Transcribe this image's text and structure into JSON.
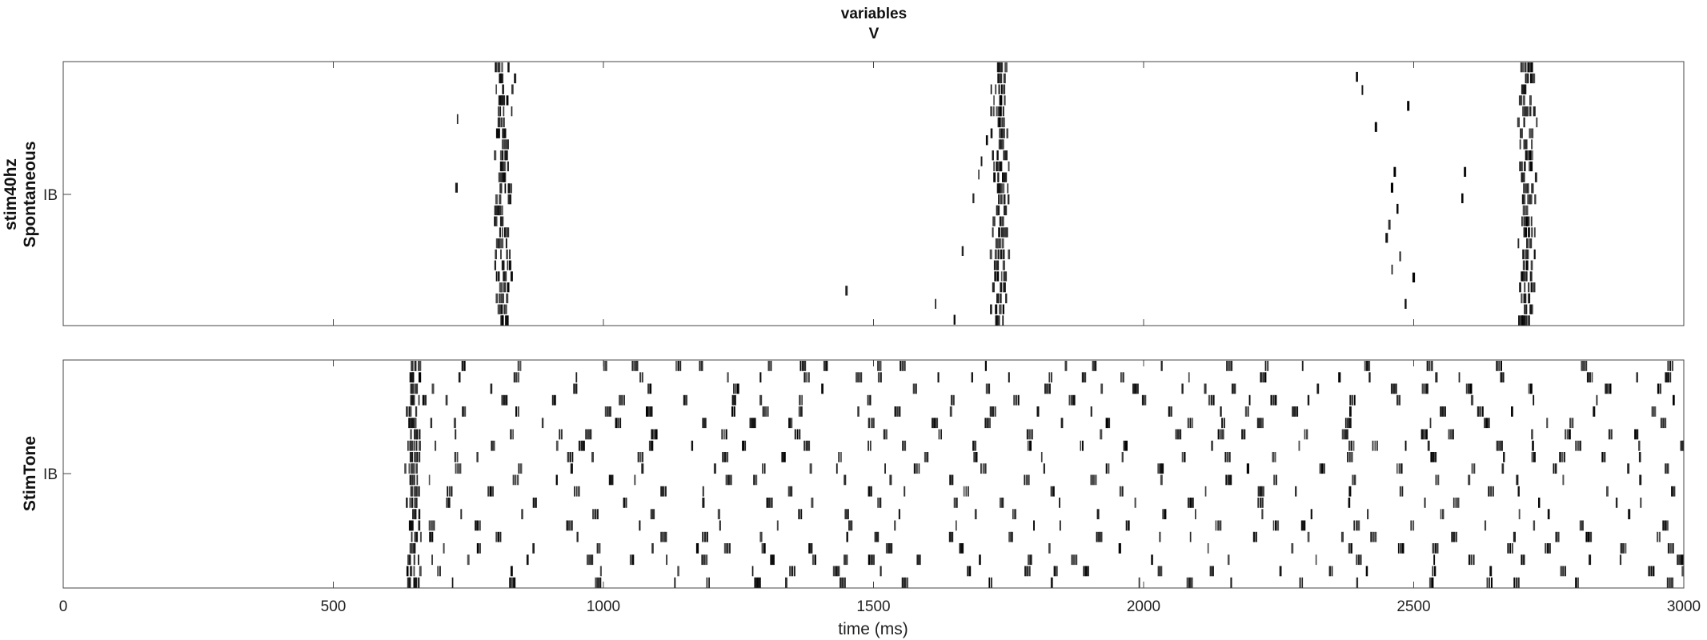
{
  "title": {
    "line1": "variables",
    "line2": "V"
  },
  "chart_data": [
    {
      "type": "raster",
      "ylabel_lines": [
        "stim40hz",
        "Spontaneous"
      ],
      "ytick_label": "IB",
      "xlim": [
        0,
        3000
      ],
      "bursts": [
        {
          "center": 815,
          "spread": 30
        },
        {
          "center": 1735,
          "spread": 30
        },
        {
          "center": 2710,
          "spread": 32
        }
      ],
      "sparse_spikes": [
        [
          730,
          0.22
        ],
        [
          728,
          0.48
        ],
        [
          1450,
          0.87
        ],
        [
          1615,
          0.92
        ],
        [
          1650,
          0.98
        ],
        [
          1665,
          0.72
        ],
        [
          1685,
          0.52
        ],
        [
          1695,
          0.43
        ],
        [
          1700,
          0.38
        ],
        [
          1710,
          0.3
        ],
        [
          2395,
          0.06
        ],
        [
          2405,
          0.11
        ],
        [
          2430,
          0.25
        ],
        [
          2465,
          0.42
        ],
        [
          2460,
          0.48
        ],
        [
          2470,
          0.56
        ],
        [
          2455,
          0.62
        ],
        [
          2450,
          0.67
        ],
        [
          2475,
          0.74
        ],
        [
          2460,
          0.79
        ],
        [
          2500,
          0.82
        ],
        [
          2485,
          0.92
        ],
        [
          2595,
          0.42
        ],
        [
          2590,
          0.52
        ],
        [
          2490,
          0.17
        ]
      ]
    },
    {
      "type": "raster",
      "ylabel_lines": [
        "StimTone"
      ],
      "ytick_label": "IB",
      "xlim": [
        0,
        3000
      ],
      "xticks": [
        0,
        500,
        1000,
        1500,
        2000,
        2500,
        3000
      ],
      "xlabel": "time (ms)",
      "bursts": [
        {
          "center": 648,
          "spread": 28
        }
      ],
      "sparse_onset": 660,
      "sparse_end": 3000
    }
  ]
}
